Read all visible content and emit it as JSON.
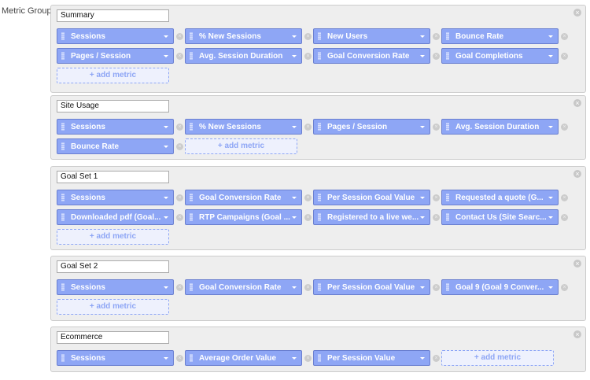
{
  "label": "Metric Groups",
  "add_metric": "+ add metric",
  "groups": [
    {
      "name": "Summary",
      "metrics": [
        "Sessions",
        "% New Sessions",
        "New Users",
        "Bounce Rate",
        "Pages / Session",
        "Avg. Session Duration",
        "Goal Conversion Rate",
        "Goal Completions"
      ]
    },
    {
      "name": "Site Usage",
      "metrics": [
        "Sessions",
        "% New Sessions",
        "Pages / Session",
        "Avg. Session Duration",
        "Bounce Rate"
      ]
    },
    {
      "name": "Goal Set 1",
      "metrics": [
        "Sessions",
        "Goal Conversion Rate",
        "Per Session Goal Value",
        "Requested a quote (G...",
        "Downloaded pdf (Goal...",
        "RTP Campaigns (Goal ...",
        "Registered to a live we...",
        "Contact Us (Site Searc..."
      ]
    },
    {
      "name": "Goal Set 2",
      "metrics": [
        "Sessions",
        "Goal Conversion Rate",
        "Per Session Goal Value",
        "Goal 9 (Goal 9 Conver..."
      ]
    },
    {
      "name": "Ecommerce",
      "metrics": [
        "Sessions",
        "Average Order Value",
        "Per Session Value"
      ]
    }
  ]
}
